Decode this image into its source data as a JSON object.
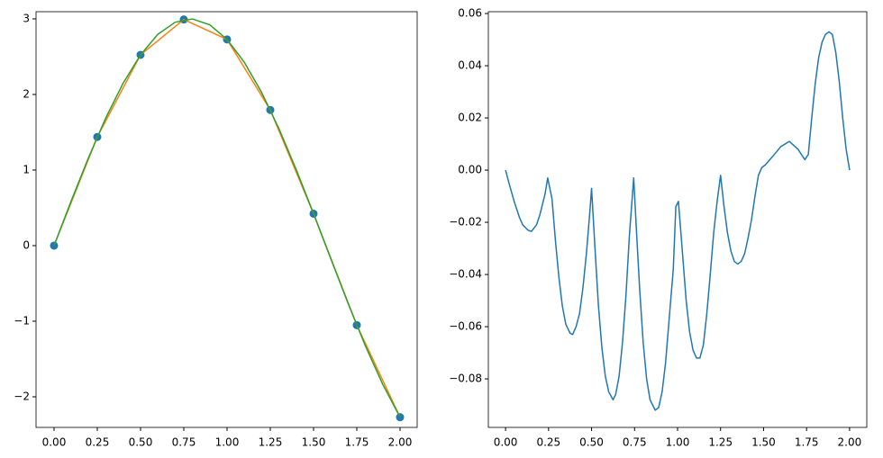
{
  "chart_data": [
    {
      "type": "line",
      "xlim": [
        -0.104,
        2.099
      ],
      "ylim": [
        -2.405,
        3.095
      ],
      "xticks": [
        {
          "value": 0,
          "label": "0.00"
        },
        {
          "value": 0.25,
          "label": "0.25"
        },
        {
          "value": 0.5,
          "label": "0.50"
        },
        {
          "value": 0.75,
          "label": "0.75"
        },
        {
          "value": 1,
          "label": "1.00"
        },
        {
          "value": 1.25,
          "label": "1.25"
        },
        {
          "value": 1.5,
          "label": "1.50"
        },
        {
          "value": 1.75,
          "label": "1.75"
        },
        {
          "value": 2,
          "label": "2.00"
        }
      ],
      "yticks": [
        {
          "value": -2,
          "label": "−2"
        },
        {
          "value": -1,
          "label": "−1"
        },
        0,
        1,
        2,
        3
      ],
      "series": [
        {
          "mode": "markers",
          "color": "#1f77b4",
          "x": [
            0,
            0.25,
            0.5,
            0.75,
            1,
            1.25,
            1.5,
            1.75,
            2
          ],
          "values": [
            0,
            1.438,
            2.524,
            2.992,
            2.728,
            1.795,
            0.423,
            -1.052,
            -2.27
          ]
        },
        {
          "mode": "line",
          "color": "#ff7f0e",
          "x": [
            0,
            0.25,
            0.5,
            0.75,
            1,
            1.25,
            1.5,
            1.75,
            2
          ],
          "values": [
            0,
            1.438,
            2.524,
            2.992,
            2.728,
            1.795,
            0.423,
            -1.052,
            -2.27
          ]
        },
        {
          "mode": "line",
          "color": "#2ca02c",
          "x": [
            0,
            0.1,
            0.2,
            0.3,
            0.4,
            0.5,
            0.6,
            0.7,
            0.8,
            0.9,
            1.0,
            1.1,
            1.2,
            1.3,
            1.4,
            1.5,
            1.6,
            1.7,
            1.8,
            1.9,
            2.0
          ],
          "values": [
            0,
            0.596,
            1.168,
            1.694,
            2.152,
            2.524,
            2.796,
            2.956,
            2.999,
            2.922,
            2.728,
            2.426,
            2.026,
            1.547,
            1.005,
            0.423,
            -0.175,
            -0.766,
            -1.328,
            -1.836,
            -2.27
          ]
        }
      ]
    },
    {
      "type": "line",
      "xlim": [
        -0.1,
        2.1
      ],
      "ylim": [
        -0.0986,
        0.0607
      ],
      "xticks": [
        {
          "value": 0,
          "label": "0.00"
        },
        {
          "value": 0.25,
          "label": "0.25"
        },
        {
          "value": 0.5,
          "label": "0.50"
        },
        {
          "value": 0.75,
          "label": "0.75"
        },
        {
          "value": 1,
          "label": "1.00"
        },
        {
          "value": 1.25,
          "label": "1.25"
        },
        {
          "value": 1.5,
          "label": "1.50"
        },
        {
          "value": 1.75,
          "label": "1.75"
        },
        {
          "value": 2,
          "label": "2.00"
        }
      ],
      "yticks": [
        {
          "value": -0.08,
          "label": "−0.08"
        },
        {
          "value": -0.06,
          "label": "−0.06"
        },
        {
          "value": -0.04,
          "label": "−0.04"
        },
        {
          "value": -0.02,
          "label": "−0.02"
        },
        {
          "value": 0,
          "label": "0.00"
        },
        {
          "value": 0.02,
          "label": "0.02"
        },
        {
          "value": 0.04,
          "label": "0.04"
        },
        {
          "value": 0.06,
          "label": "0.06"
        }
      ],
      "series": [
        {
          "mode": "line",
          "color": "#1f77b4",
          "x": [
            0,
            0.02,
            0.05,
            0.08,
            0.1,
            0.13,
            0.15,
            0.18,
            0.2,
            0.23,
            0.245,
            0.27,
            0.29,
            0.31,
            0.33,
            0.35,
            0.375,
            0.39,
            0.41,
            0.43,
            0.45,
            0.47,
            0.49,
            0.5,
            0.52,
            0.54,
            0.56,
            0.58,
            0.6,
            0.625,
            0.64,
            0.66,
            0.68,
            0.7,
            0.72,
            0.745,
            0.76,
            0.78,
            0.8,
            0.82,
            0.84,
            0.87,
            0.89,
            0.91,
            0.93,
            0.95,
            0.975,
            0.99,
            1.005,
            1.03,
            1.05,
            1.07,
            1.09,
            1.11,
            1.13,
            1.15,
            1.17,
            1.19,
            1.21,
            1.23,
            1.25,
            1.27,
            1.29,
            1.31,
            1.33,
            1.35,
            1.37,
            1.39,
            1.41,
            1.43,
            1.45,
            1.47,
            1.49,
            1.51,
            1.55,
            1.6,
            1.65,
            1.7,
            1.74,
            1.76,
            1.78,
            1.8,
            1.82,
            1.84,
            1.86,
            1.88,
            1.9,
            1.92,
            1.94,
            1.96,
            1.98,
            2.0
          ],
          "values": [
            0,
            -0.005,
            -0.012,
            -0.018,
            -0.021,
            -0.023,
            -0.0235,
            -0.021,
            -0.017,
            -0.009,
            -0.003,
            -0.011,
            -0.027,
            -0.041,
            -0.052,
            -0.059,
            -0.0625,
            -0.063,
            -0.06,
            -0.055,
            -0.045,
            -0.032,
            -0.016,
            -0.007,
            -0.03,
            -0.052,
            -0.068,
            -0.079,
            -0.085,
            -0.088,
            -0.086,
            -0.079,
            -0.066,
            -0.048,
            -0.025,
            -0.003,
            -0.022,
            -0.046,
            -0.066,
            -0.08,
            -0.088,
            -0.092,
            -0.091,
            -0.085,
            -0.074,
            -0.058,
            -0.038,
            -0.014,
            -0.012,
            -0.033,
            -0.05,
            -0.062,
            -0.069,
            -0.072,
            -0.072,
            -0.067,
            -0.055,
            -0.04,
            -0.024,
            -0.012,
            -0.002,
            -0.014,
            -0.024,
            -0.031,
            -0.035,
            -0.036,
            -0.035,
            -0.032,
            -0.026,
            -0.019,
            -0.01,
            -0.002,
            0.001,
            0.002,
            0.005,
            0.009,
            0.011,
            0.008,
            0.004,
            0.006,
            0.02,
            0.033,
            0.043,
            0.049,
            0.052,
            0.053,
            0.052,
            0.045,
            0.034,
            0.02,
            0.008,
            0
          ]
        }
      ]
    }
  ]
}
